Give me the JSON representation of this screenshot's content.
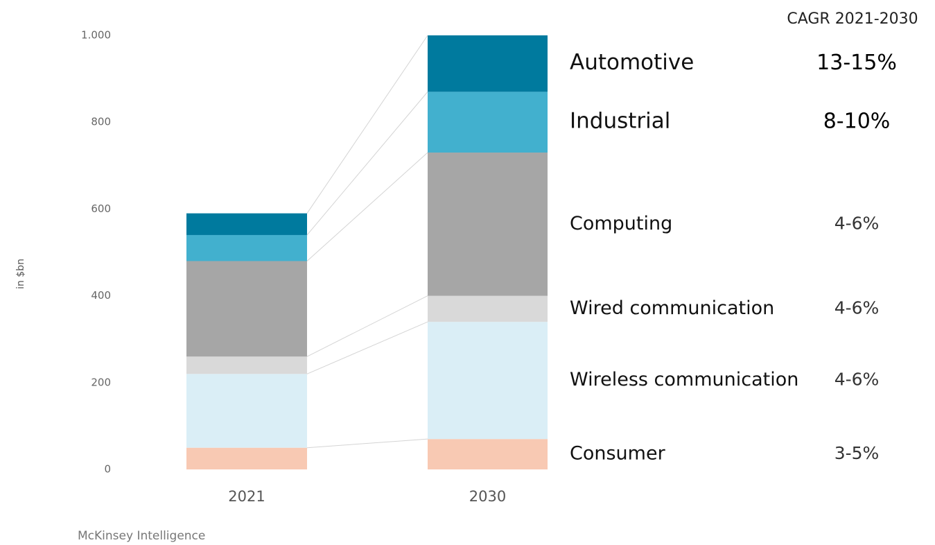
{
  "chart_data": {
    "type": "stacked_bar",
    "categories": [
      "2021",
      "2030"
    ],
    "y_label": "in $bn",
    "ylim": [
      0,
      1000
    ],
    "yticks": [
      0,
      200,
      400,
      600,
      800,
      {
        "value": 1000,
        "label": "1.000"
      }
    ],
    "cagr_header": "CAGR 2021-2030",
    "source": "McKinsey Intelligence",
    "series": [
      {
        "name": "Consumer",
        "color": "#f8c9b3",
        "values": [
          50,
          70
        ],
        "cagr": "3-5%"
      },
      {
        "name": "Wireless communication",
        "color": "#daeef6",
        "values": [
          170,
          270
        ],
        "cagr": "4-6%"
      },
      {
        "name": "Wired communication",
        "color": "#d9d9d9",
        "values": [
          40,
          60
        ],
        "cagr": "4-6%"
      },
      {
        "name": "Computing",
        "color": "#a6a6a6",
        "values": [
          220,
          330
        ],
        "cagr": "4-6%"
      },
      {
        "name": "Industrial",
        "color": "#42b0ce",
        "values": [
          60,
          140
        ],
        "cagr": "8-10%"
      },
      {
        "name": "Automotive",
        "color": "#007a9e",
        "values": [
          50,
          130
        ],
        "cagr": "13-15%"
      }
    ]
  }
}
